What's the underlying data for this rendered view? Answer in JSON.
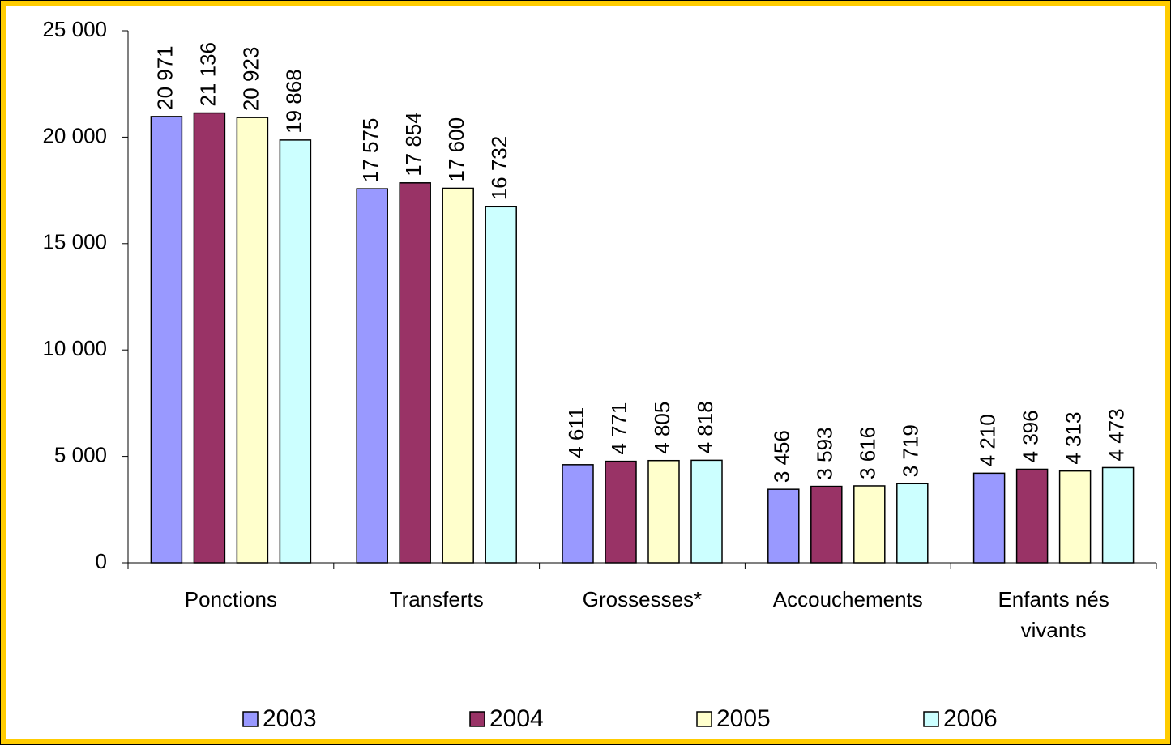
{
  "chart_data": {
    "type": "bar",
    "categories": [
      "Ponctions",
      "Transferts",
      "Grossesses*",
      "Accouchements",
      "Enfants nés vivants"
    ],
    "series": [
      {
        "name": "2003",
        "color": "#9999ff",
        "values": [
          20971,
          17575,
          4611,
          3456,
          4210
        ],
        "value_labels": [
          "20 971",
          "17 575",
          "4 611",
          "3 456",
          "4 210"
        ]
      },
      {
        "name": "2004",
        "color": "#993366",
        "values": [
          21136,
          17854,
          4771,
          3593,
          4396
        ],
        "value_labels": [
          "21 136",
          "17 854",
          "4 771",
          "3 593",
          "4 396"
        ]
      },
      {
        "name": "2005",
        "color": "#ffffcc",
        "values": [
          20923,
          17600,
          4805,
          3616,
          4313
        ],
        "value_labels": [
          "20 923",
          "17 600",
          "4 805",
          "3 616",
          "4 313"
        ]
      },
      {
        "name": "2006",
        "color": "#ccffff",
        "values": [
          19868,
          16732,
          4818,
          3719,
          4473
        ],
        "value_labels": [
          "19 868",
          "16 732",
          "4 818",
          "3 719",
          "4 473"
        ]
      }
    ],
    "ylim": [
      0,
      25000
    ],
    "yticks": [
      0,
      {
        "value": 5000,
        "label": "5 000"
      },
      {
        "value": 10000,
        "label": "10 000"
      },
      {
        "value": 15000,
        "label": "15 000"
      },
      {
        "value": 20000,
        "label": "20 000"
      },
      {
        "value": 25000,
        "label": "25 000"
      }
    ],
    "legend": "bottom"
  }
}
